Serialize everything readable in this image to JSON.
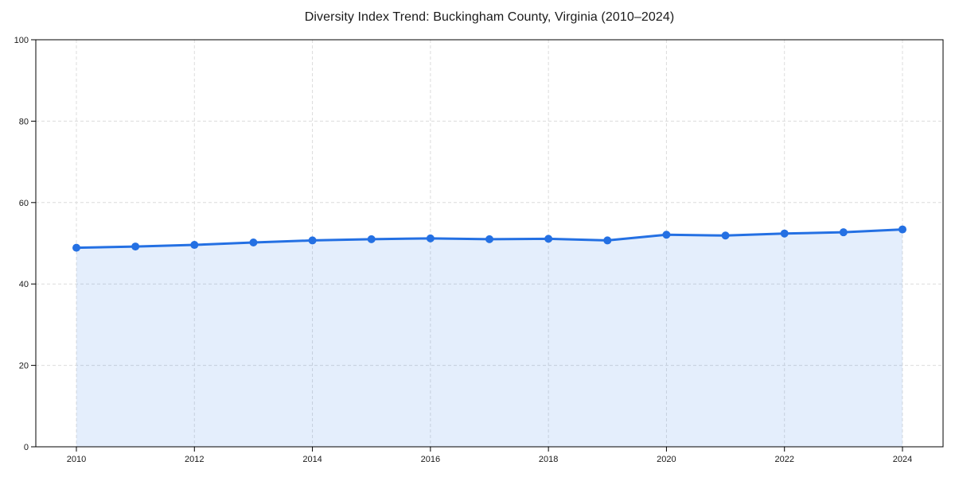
{
  "chart_data": {
    "type": "area",
    "title": "Diversity Index Trend: Buckingham County, Virginia (2010–2024)",
    "x": [
      2010,
      2011,
      2012,
      2013,
      2014,
      2015,
      2016,
      2017,
      2018,
      2019,
      2020,
      2021,
      2022,
      2023,
      2024
    ],
    "series": [
      {
        "name": "Diversity Index",
        "values": [
          48.9,
          49.2,
          49.6,
          50.2,
          50.7,
          51.0,
          51.2,
          51.0,
          51.1,
          50.7,
          52.1,
          51.9,
          52.4,
          52.7,
          53.4
        ]
      }
    ],
    "xlabel": "",
    "ylabel": "",
    "ylim": [
      0,
      100
    ],
    "yticks": [
      0,
      20,
      40,
      60,
      80,
      100
    ],
    "xticks": [
      2010,
      2012,
      2014,
      2016,
      2018,
      2020,
      2022,
      2024
    ],
    "grid": true,
    "grid_style": "dashed",
    "legend": "none",
    "colors": {
      "line": "#2470e3",
      "marker": "#2470e3",
      "fill": "#2470e3",
      "fill_opacity": 0.12,
      "grid": "#dcdcdc",
      "axis": "#000000",
      "tick_label": "#1a1a1a",
      "background": "#ffffff"
    }
  }
}
